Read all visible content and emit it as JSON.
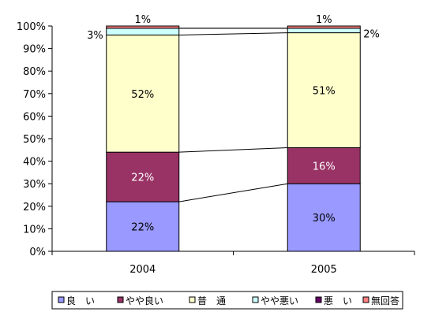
{
  "chart_data": {
    "type": "bar",
    "stacked": true,
    "percent": true,
    "categories": [
      "2004",
      "2005"
    ],
    "ylim": [
      0,
      100
    ],
    "yticks": [
      "0%",
      "10%",
      "20%",
      "30%",
      "40%",
      "50%",
      "60%",
      "70%",
      "80%",
      "90%",
      "100%"
    ],
    "grid": false,
    "legend_position": "bottom",
    "series": [
      {
        "name": "良　い",
        "values": [
          22,
          30
        ],
        "labels": [
          "22%",
          "30%"
        ],
        "color": "#9999ff",
        "label_color": "#000000"
      },
      {
        "name": "やや良い",
        "values": [
          22,
          16
        ],
        "labels": [
          "22%",
          "16%"
        ],
        "color": "#993366",
        "label_color": "#ffffff"
      },
      {
        "name": "普　通",
        "values": [
          52,
          51
        ],
        "labels": [
          "52%",
          "51%"
        ],
        "color": "#ffffcc",
        "label_color": "#000000"
      },
      {
        "name": "やや悪い",
        "values": [
          3,
          2
        ],
        "labels": [
          "3%",
          "2%"
        ],
        "color": "#ccffff",
        "label_color": "#000000"
      },
      {
        "name": "悪　い",
        "values": [
          0,
          0
        ],
        "labels": [
          "",
          ""
        ],
        "color": "#660066",
        "label_color": "#000000"
      },
      {
        "name": "無回答",
        "values": [
          1,
          1
        ],
        "labels": [
          "1%",
          "1%"
        ],
        "color": "#ff8080",
        "label_color": "#000000"
      }
    ]
  }
}
